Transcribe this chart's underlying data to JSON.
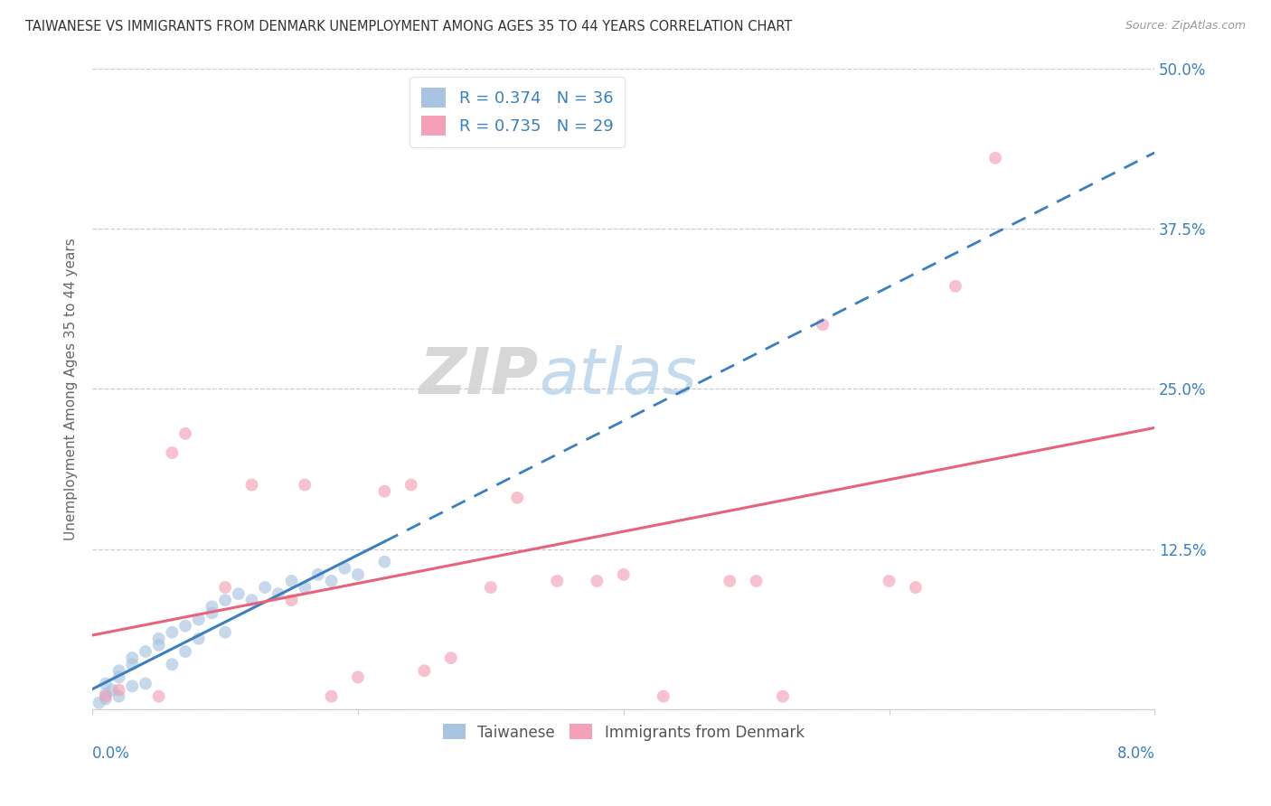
{
  "title": "TAIWANESE VS IMMIGRANTS FROM DENMARK UNEMPLOYMENT AMONG AGES 35 TO 44 YEARS CORRELATION CHART",
  "source": "Source: ZipAtlas.com",
  "ylabel": "Unemployment Among Ages 35 to 44 years",
  "xlim": [
    0.0,
    0.08
  ],
  "ylim": [
    0.0,
    0.5
  ],
  "yticks": [
    0.0,
    0.125,
    0.25,
    0.375,
    0.5
  ],
  "ytick_labels": [
    "",
    "12.5%",
    "25.0%",
    "37.5%",
    "50.0%"
  ],
  "xticks": [
    0.0,
    0.02,
    0.04,
    0.06,
    0.08
  ],
  "taiwanese_R": "0.374",
  "taiwanese_N": "36",
  "denmark_R": "0.735",
  "denmark_N": "29",
  "taiwanese_color": "#a8c4e0",
  "denmark_color": "#f4a0b8",
  "taiwanese_line_color": "#3a7fc1",
  "denmark_line_color": "#e8637a",
  "taiwanese_x": [
    0.0005,
    0.001,
    0.001,
    0.001,
    0.0015,
    0.002,
    0.002,
    0.002,
    0.003,
    0.003,
    0.003,
    0.004,
    0.004,
    0.005,
    0.005,
    0.006,
    0.006,
    0.007,
    0.007,
    0.008,
    0.008,
    0.009,
    0.009,
    0.01,
    0.01,
    0.011,
    0.012,
    0.013,
    0.014,
    0.015,
    0.016,
    0.017,
    0.018,
    0.019,
    0.02,
    0.022
  ],
  "taiwanese_y": [
    0.005,
    0.008,
    0.012,
    0.02,
    0.015,
    0.01,
    0.025,
    0.03,
    0.018,
    0.035,
    0.04,
    0.02,
    0.045,
    0.05,
    0.055,
    0.035,
    0.06,
    0.045,
    0.065,
    0.07,
    0.055,
    0.075,
    0.08,
    0.06,
    0.085,
    0.09,
    0.085,
    0.095,
    0.09,
    0.1,
    0.095,
    0.105,
    0.1,
    0.11,
    0.105,
    0.115
  ],
  "denmark_x": [
    0.001,
    0.002,
    0.005,
    0.006,
    0.007,
    0.01,
    0.012,
    0.015,
    0.016,
    0.018,
    0.02,
    0.022,
    0.024,
    0.025,
    0.027,
    0.03,
    0.032,
    0.035,
    0.038,
    0.04,
    0.043,
    0.048,
    0.05,
    0.052,
    0.055,
    0.06,
    0.062,
    0.065,
    0.068
  ],
  "denmark_y": [
    0.01,
    0.015,
    0.01,
    0.2,
    0.215,
    0.095,
    0.175,
    0.085,
    0.175,
    0.01,
    0.025,
    0.17,
    0.175,
    0.03,
    0.04,
    0.095,
    0.165,
    0.1,
    0.1,
    0.105,
    0.01,
    0.1,
    0.1,
    0.01,
    0.3,
    0.1,
    0.095,
    0.33,
    0.43
  ]
}
